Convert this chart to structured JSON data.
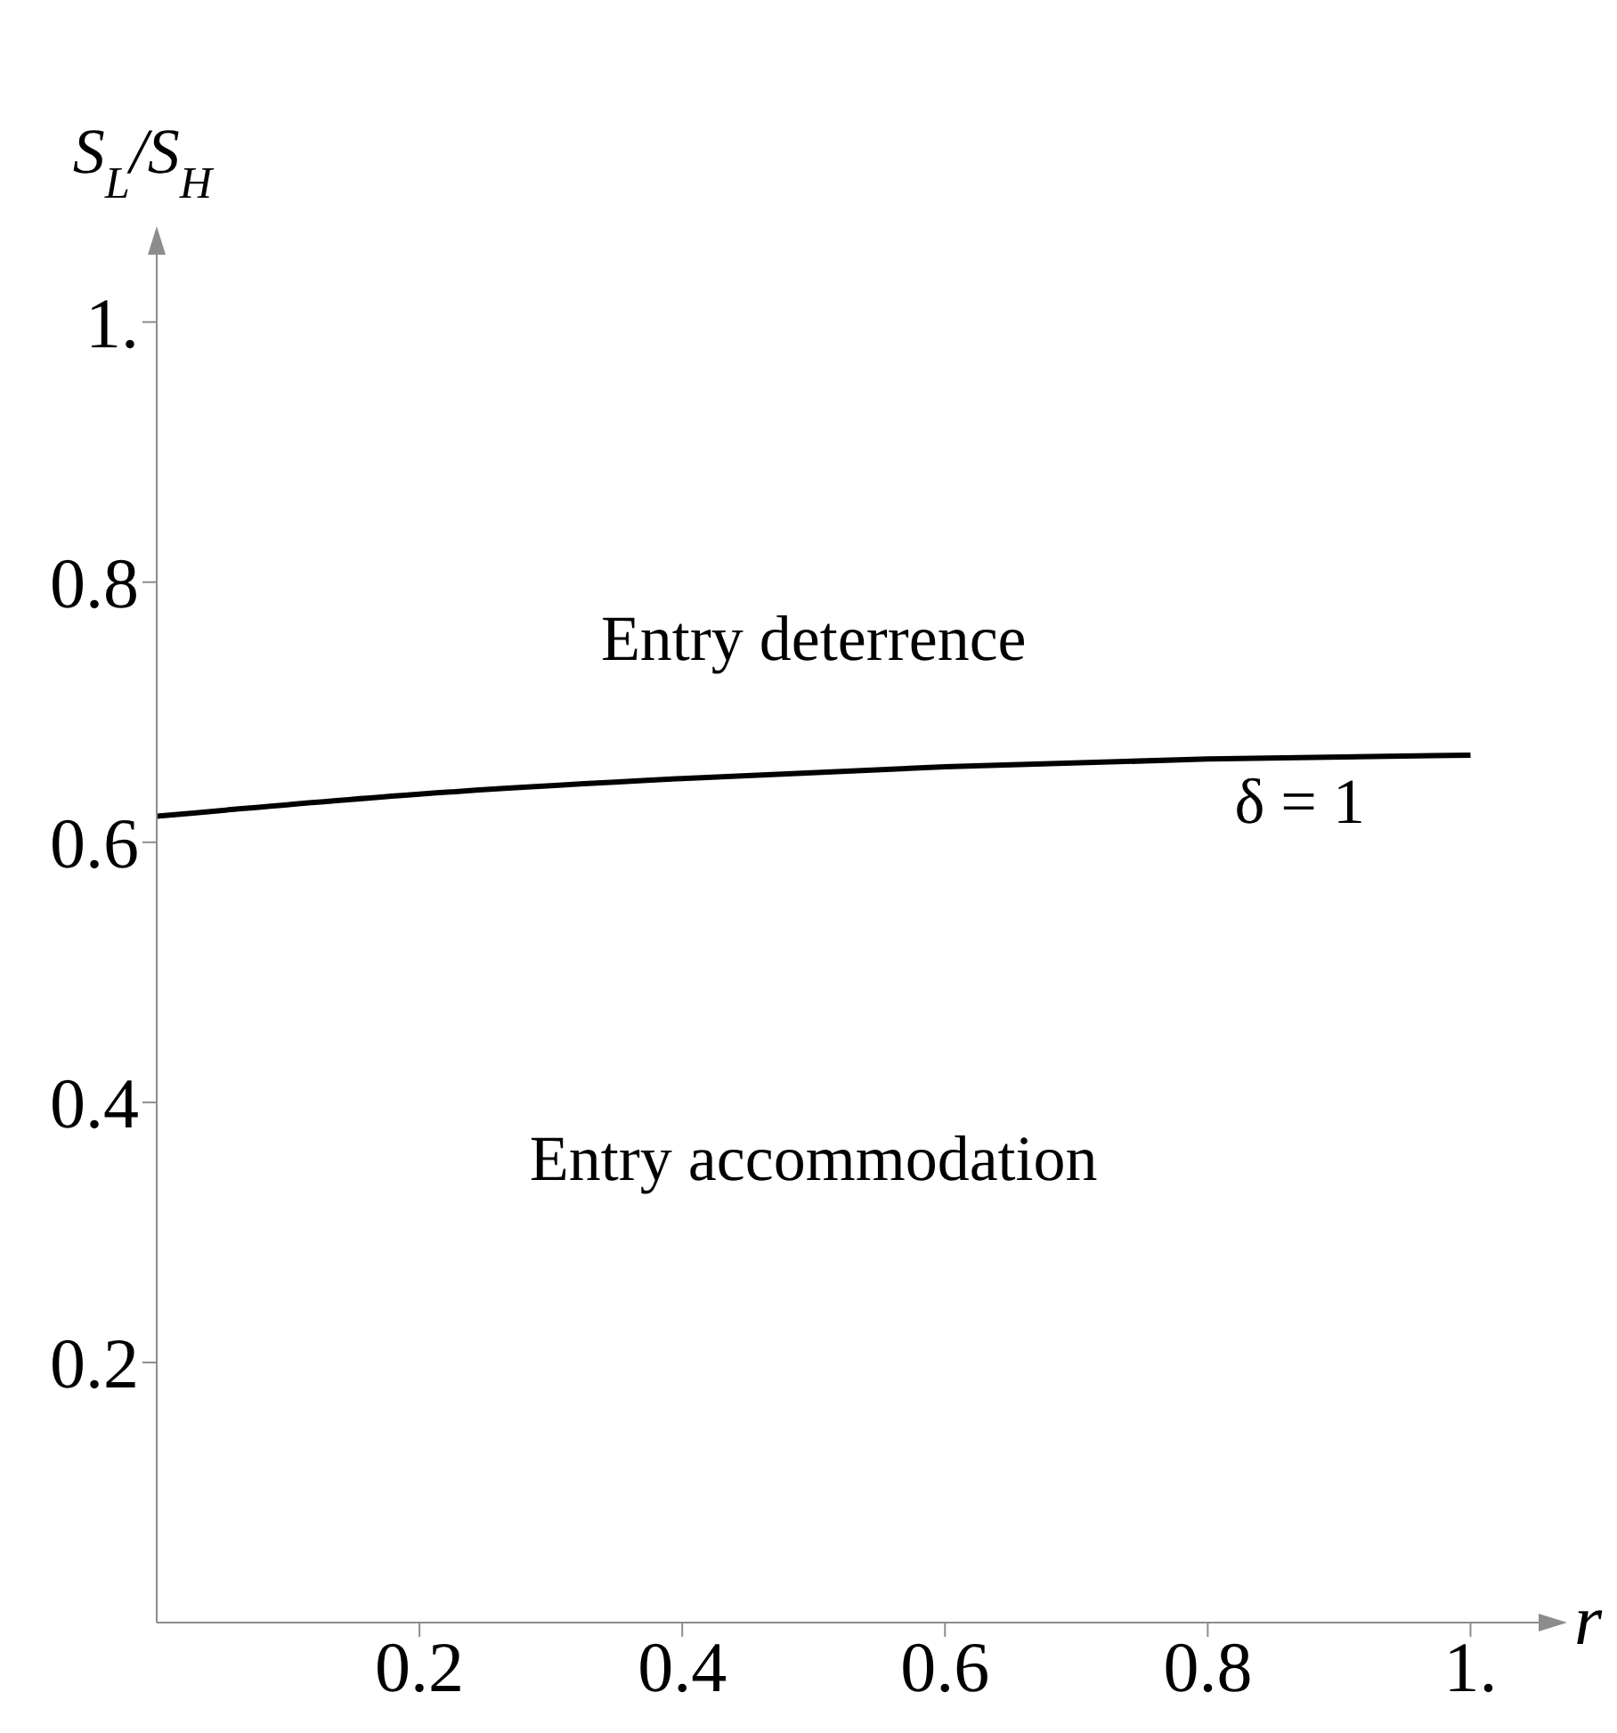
{
  "chart_data": {
    "type": "line",
    "xlabel": "r",
    "ylabel": "S$_{L}$/S$_{H}$",
    "x": [
      0,
      0.2,
      0.4,
      0.6,
      0.8,
      1
    ],
    "series": [
      {
        "color": "#000000",
        "values": [
          0.62,
          0.637,
          0.649,
          0.658,
          0.664,
          0.667
        ]
      }
    ],
    "xlim": [
      0,
      1.06
    ],
    "ylim": [
      0,
      1.06
    ],
    "xticks": [
      0.2,
      0.4,
      0.6,
      0.8,
      {
        "value": 1,
        "label": "1."
      }
    ],
    "yticks": [
      0.2,
      0.4,
      0.6,
      0.8,
      {
        "value": 1,
        "label": "1."
      }
    ],
    "annotations": [
      "Entry deterrence",
      "Entry accommodation",
      "δ = 1"
    ],
    "grid": false,
    "legend": false,
    "marker": "none",
    "line_style": "solid"
  }
}
